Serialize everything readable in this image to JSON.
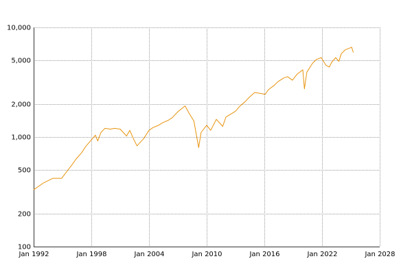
{
  "chart_data": {
    "type": "line",
    "title": "",
    "xlabel": "",
    "ylabel": "",
    "y_scale": "log",
    "ylim": [
      100,
      10000
    ],
    "xlim": [
      "1992-01",
      "2028-01"
    ],
    "grid": true,
    "legend": "none",
    "x_ticks": [
      "Jan 1992",
      "Jan 1998",
      "Jan 2004",
      "Jan 2010",
      "Jan 2016",
      "Jan 2022",
      "Jan 2028"
    ],
    "y_ticks": [
      {
        "value": 100,
        "label": "100"
      },
      {
        "value": 200,
        "label": "200"
      },
      {
        "value": 500,
        "label": "500"
      },
      {
        "value": 1000,
        "label": "1,000"
      },
      {
        "value": 2000,
        "label": "2,000"
      },
      {
        "value": 5000,
        "label": "5,000"
      },
      {
        "value": 10000,
        "label": "10,000"
      }
    ],
    "series": [
      {
        "color": "#e8930c",
        "points": [
          [
            "1992-01",
            330
          ],
          [
            "1993-01",
            380
          ],
          [
            "1994-01",
            420
          ],
          [
            "1994-12",
            420
          ],
          [
            "1995-06",
            480
          ],
          [
            "1996-01",
            560
          ],
          [
            "1996-06",
            630
          ],
          [
            "1997-01",
            720
          ],
          [
            "1997-06",
            820
          ],
          [
            "1998-01",
            940
          ],
          [
            "1998-06",
            1040
          ],
          [
            "1998-09",
            920
          ],
          [
            "1999-01",
            1100
          ],
          [
            "1999-06",
            1200
          ],
          [
            "2000-01",
            1180
          ],
          [
            "2000-06",
            1200
          ],
          [
            "2001-01",
            1180
          ],
          [
            "2001-09",
            1020
          ],
          [
            "2002-01",
            1150
          ],
          [
            "2002-06",
            950
          ],
          [
            "2002-10",
            830
          ],
          [
            "2003-06",
            960
          ],
          [
            "2004-01",
            1150
          ],
          [
            "2004-06",
            1220
          ],
          [
            "2005-01",
            1280
          ],
          [
            "2005-06",
            1350
          ],
          [
            "2006-01",
            1420
          ],
          [
            "2006-06",
            1500
          ],
          [
            "2007-01",
            1700
          ],
          [
            "2007-10",
            1920
          ],
          [
            "2008-03",
            1650
          ],
          [
            "2008-09",
            1400
          ],
          [
            "2009-03",
            800
          ],
          [
            "2009-06",
            1100
          ],
          [
            "2010-01",
            1280
          ],
          [
            "2010-06",
            1150
          ],
          [
            "2011-01",
            1450
          ],
          [
            "2011-09",
            1250
          ],
          [
            "2012-01",
            1520
          ],
          [
            "2013-01",
            1720
          ],
          [
            "2013-06",
            1900
          ],
          [
            "2014-01",
            2100
          ],
          [
            "2014-06",
            2300
          ],
          [
            "2015-01",
            2550
          ],
          [
            "2015-08",
            2500
          ],
          [
            "2016-02",
            2450
          ],
          [
            "2016-06",
            2700
          ],
          [
            "2017-01",
            2950
          ],
          [
            "2017-06",
            3200
          ],
          [
            "2018-01",
            3450
          ],
          [
            "2018-06",
            3550
          ],
          [
            "2018-12",
            3300
          ],
          [
            "2019-06",
            3750
          ],
          [
            "2020-01",
            4100
          ],
          [
            "2020-03",
            2750
          ],
          [
            "2020-06",
            3900
          ],
          [
            "2021-01",
            4700
          ],
          [
            "2021-06",
            5100
          ],
          [
            "2021-12",
            5300
          ],
          [
            "2022-06",
            4500
          ],
          [
            "2022-10",
            4350
          ],
          [
            "2023-01",
            4800
          ],
          [
            "2023-06",
            5300
          ],
          [
            "2023-10",
            4900
          ],
          [
            "2024-01",
            5750
          ],
          [
            "2024-06",
            6250
          ],
          [
            "2024-12",
            6500
          ],
          [
            "2025-02",
            6600
          ],
          [
            "2025-04",
            5900
          ]
        ]
      }
    ]
  }
}
